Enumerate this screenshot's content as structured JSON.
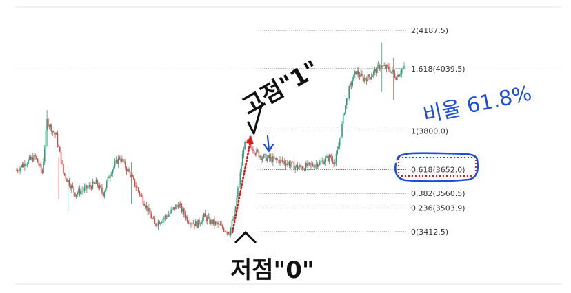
{
  "chart_data": {
    "type": "candlestick",
    "title": "",
    "xlabel": "",
    "ylabel": "",
    "grid": false,
    "y_range": [
      3300,
      4250
    ],
    "colors": {
      "up": "#2e9e7a",
      "down": "#d04a4a",
      "annotation_blue": "#1f4fd6",
      "annotation_red": "#d81b1b"
    },
    "fib_levels": [
      {
        "ratio": 2,
        "price": 4187.5,
        "label": "2(4187.5)"
      },
      {
        "ratio": 1.618,
        "price": 4039.5,
        "label": "1.618(4039.5)"
      },
      {
        "ratio": 1,
        "price": 3800.0,
        "label": "1(3800.0)"
      },
      {
        "ratio": 0.618,
        "price": 3652.0,
        "label": "0.618(3652.0)"
      },
      {
        "ratio": 0.382,
        "price": 3560.5,
        "label": "0.382(3560.5)"
      },
      {
        "ratio": 0.236,
        "price": 3503.9,
        "label": "0.236(3503.9)"
      },
      {
        "ratio": 0,
        "price": 3412.5,
        "label": "0(3412.5)"
      }
    ],
    "segments": [
      [
        0,
        3650
      ],
      [
        8,
        3680
      ],
      [
        16,
        3700
      ],
      [
        22,
        3640
      ],
      [
        26,
        3840
      ],
      [
        34,
        3780
      ],
      [
        40,
        3640
      ],
      [
        50,
        3560
      ],
      [
        60,
        3580
      ],
      [
        68,
        3600
      ],
      [
        74,
        3560
      ],
      [
        80,
        3640
      ],
      [
        88,
        3700
      ],
      [
        96,
        3640
      ],
      [
        104,
        3570
      ],
      [
        112,
        3500
      ],
      [
        118,
        3440
      ],
      [
        124,
        3460
      ],
      [
        130,
        3480
      ],
      [
        138,
        3520
      ],
      [
        146,
        3460
      ],
      [
        154,
        3440
      ],
      [
        160,
        3470
      ],
      [
        166,
        3450
      ],
      [
        172,
        3440
      ],
      [
        178,
        3420
      ],
      [
        182,
        3412.5
      ],
      [
        186,
        3480
      ],
      [
        190,
        3600
      ],
      [
        194,
        3740
      ],
      [
        198,
        3760
      ],
      [
        204,
        3720
      ],
      [
        210,
        3700
      ],
      [
        220,
        3690
      ],
      [
        230,
        3680
      ],
      [
        240,
        3660
      ],
      [
        250,
        3665
      ],
      [
        260,
        3680
      ],
      [
        268,
        3700
      ],
      [
        272,
        3680
      ],
      [
        276,
        3760
      ],
      [
        280,
        3880
      ],
      [
        284,
        3960
      ],
      [
        290,
        4030
      ],
      [
        296,
        4000
      ],
      [
        302,
        4010
      ],
      [
        310,
        4050
      ],
      [
        318,
        4040
      ],
      [
        324,
        4010
      ],
      [
        330,
        4040
      ]
    ],
    "wick_spikes": [
      {
        "i": 26,
        "high": 3880,
        "low": 3740
      },
      {
        "i": 36,
        "high": 3700,
        "low": 3540
      },
      {
        "i": 44,
        "high": 3650,
        "low": 3490
      },
      {
        "i": 98,
        "high": 3680,
        "low": 3520
      },
      {
        "i": 312,
        "high": 4140,
        "low": 3950
      },
      {
        "i": 322,
        "high": 4080,
        "low": 3920
      }
    ],
    "total_candles": 332
  },
  "annotations": {
    "high_note": "고점\"1\"",
    "low_note": "저점\"0\"",
    "ratio_note": "비율 61.8%"
  }
}
